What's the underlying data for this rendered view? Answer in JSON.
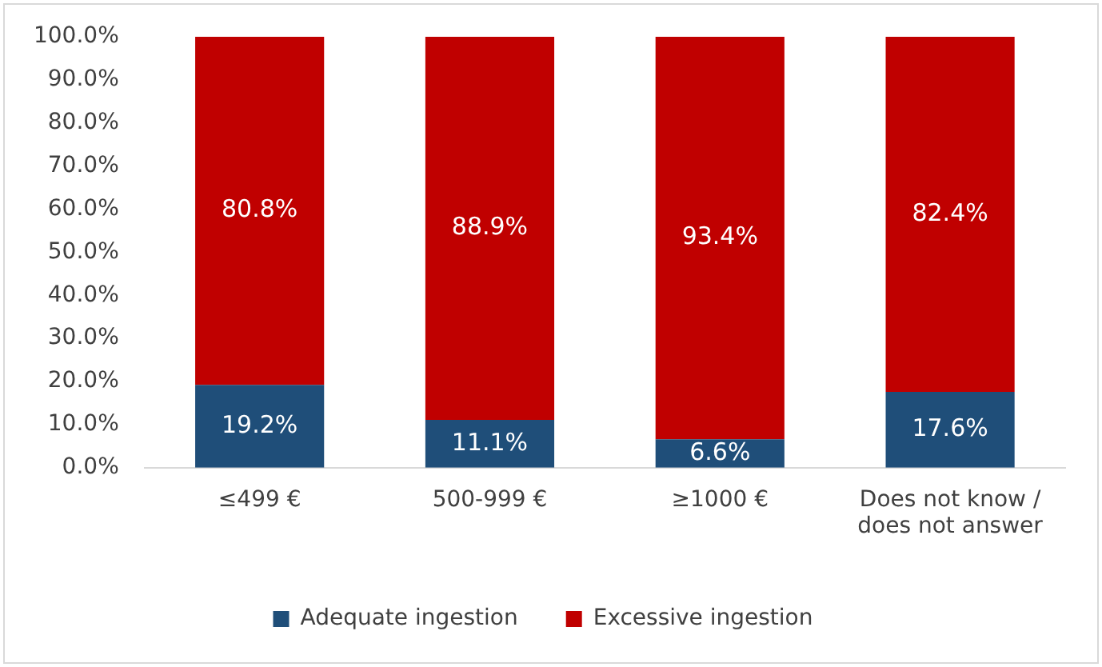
{
  "chart_data": {
    "type": "bar",
    "stacked": true,
    "categories": [
      "≤499 €",
      "500-999 €",
      "≥1000 €",
      "Does not know / does not answer"
    ],
    "series": [
      {
        "name": "Adequate ingestion",
        "color": "#1f4e79",
        "values": [
          19.2,
          11.1,
          6.6,
          17.6
        ],
        "value_labels": [
          "19.2%",
          "11.1%",
          "6.6%",
          "17.6%"
        ]
      },
      {
        "name": "Excessive ingestion",
        "color": "#c00000",
        "values": [
          80.8,
          88.9,
          93.4,
          82.4
        ],
        "value_labels": [
          "80.8%",
          "88.9%",
          "93.4%",
          "82.4%"
        ]
      }
    ],
    "ylim": [
      0,
      100
    ],
    "yticks": [
      {
        "value": 0,
        "label": "0.0%"
      },
      {
        "value": 10,
        "label": "10.0%"
      },
      {
        "value": 20,
        "label": "20.0%"
      },
      {
        "value": 30,
        "label": "30.0%"
      },
      {
        "value": 40,
        "label": "40.0%"
      },
      {
        "value": 50,
        "label": "50.0%"
      },
      {
        "value": 60,
        "label": "60.0%"
      },
      {
        "value": 70,
        "label": "70.0%"
      },
      {
        "value": 80,
        "label": "80.0%"
      },
      {
        "value": 90,
        "label": "90.0%"
      },
      {
        "value": 100,
        "label": "100.0%"
      }
    ],
    "grid": false,
    "legend": "bottom"
  }
}
